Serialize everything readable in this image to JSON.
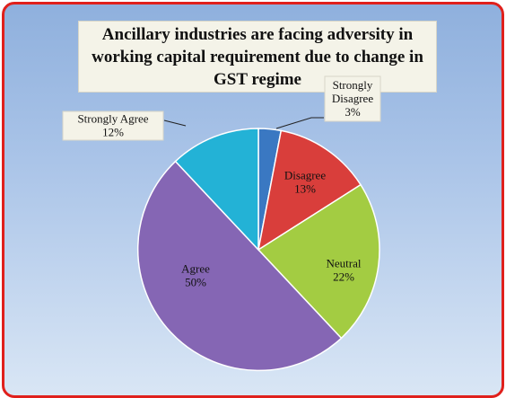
{
  "chart_data": {
    "type": "pie",
    "title": "Ancillary industries are facing adversity in working capital requirement due to change in GST regime",
    "start_angle_deg": 0,
    "direction": "clockwise",
    "slices": [
      {
        "label": "Strongly Disagree",
        "value": 3,
        "display": "3%",
        "color": "#3a78c2"
      },
      {
        "label": "Disagree",
        "value": 13,
        "display": "13%",
        "color": "#d93e3b"
      },
      {
        "label": "Neutral",
        "value": 22,
        "display": "22%",
        "color": "#a3cc42"
      },
      {
        "label": "Agree",
        "value": 50,
        "display": "50%",
        "color": "#8566b4"
      },
      {
        "label": "Strongly Agree",
        "value": 12,
        "display": "12%",
        "color": "#23b2d6"
      }
    ],
    "legend": "none",
    "data_labels": "category name and percentage"
  }
}
